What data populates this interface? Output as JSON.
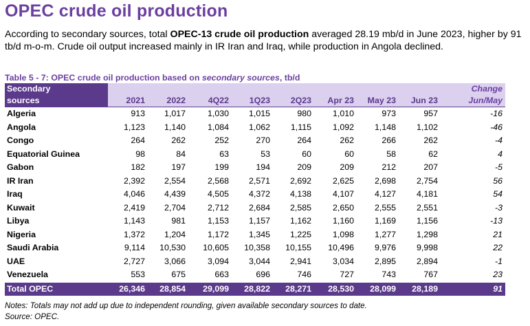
{
  "title": "OPEC crude oil production",
  "intro": {
    "part1": "According to secondary sources, total ",
    "bold": "OPEC-13 crude oil production",
    "part2": " averaged 28.19 mb/d in June 2023, higher by 91 tb/d m-o-m. Crude oil output increased mainly in IR Iran and Iraq, while production in Angola declined."
  },
  "caption": {
    "prefix": "Table 5 - 7: OPEC crude oil production based on ",
    "italic": "secondary sources",
    "suffix": ", tb/d"
  },
  "table": {
    "header": {
      "source_line1": "Secondary",
      "source_line2": "sources",
      "columns": [
        "2021",
        "2022",
        "4Q22",
        "1Q23",
        "2Q23",
        "Apr 23",
        "May 23",
        "Jun 23"
      ],
      "change_line1": "Change",
      "change_line2": "Jun/May"
    },
    "rows": [
      {
        "country": "Algeria",
        "values": [
          "913",
          "1,017",
          "1,030",
          "1,015",
          "980",
          "1,010",
          "973",
          "957"
        ],
        "change": "-16"
      },
      {
        "country": "Angola",
        "values": [
          "1,123",
          "1,140",
          "1,084",
          "1,062",
          "1,115",
          "1,092",
          "1,148",
          "1,102"
        ],
        "change": "-46"
      },
      {
        "country": "Congo",
        "values": [
          "264",
          "262",
          "252",
          "270",
          "264",
          "262",
          "266",
          "262"
        ],
        "change": "-4"
      },
      {
        "country": "Equatorial Guinea",
        "values": [
          "98",
          "84",
          "63",
          "53",
          "60",
          "60",
          "58",
          "62"
        ],
        "change": "4"
      },
      {
        "country": "Gabon",
        "values": [
          "182",
          "197",
          "199",
          "194",
          "209",
          "209",
          "212",
          "207"
        ],
        "change": "-5"
      },
      {
        "country": "IR Iran",
        "values": [
          "2,392",
          "2,554",
          "2,568",
          "2,571",
          "2,692",
          "2,625",
          "2,698",
          "2,754"
        ],
        "change": "56"
      },
      {
        "country": "Iraq",
        "values": [
          "4,046",
          "4,439",
          "4,505",
          "4,372",
          "4,138",
          "4,107",
          "4,127",
          "4,181"
        ],
        "change": "54"
      },
      {
        "country": "Kuwait",
        "values": [
          "2,419",
          "2,704",
          "2,712",
          "2,684",
          "2,585",
          "2,650",
          "2,555",
          "2,551"
        ],
        "change": "-3"
      },
      {
        "country": "Libya",
        "values": [
          "1,143",
          "981",
          "1,153",
          "1,157",
          "1,162",
          "1,160",
          "1,169",
          "1,156"
        ],
        "change": "-13"
      },
      {
        "country": "Nigeria",
        "values": [
          "1,372",
          "1,204",
          "1,172",
          "1,345",
          "1,225",
          "1,098",
          "1,277",
          "1,298"
        ],
        "change": "21"
      },
      {
        "country": "Saudi Arabia",
        "values": [
          "9,114",
          "10,530",
          "10,605",
          "10,358",
          "10,155",
          "10,496",
          "9,976",
          "9,998"
        ],
        "change": "22"
      },
      {
        "country": "UAE",
        "values": [
          "2,727",
          "3,066",
          "3,094",
          "3,044",
          "2,941",
          "3,034",
          "2,895",
          "2,894"
        ],
        "change": "-1"
      },
      {
        "country": "Venezuela",
        "values": [
          "553",
          "675",
          "663",
          "696",
          "746",
          "727",
          "743",
          "767"
        ],
        "change": "23"
      }
    ],
    "total": {
      "country": "Total  OPEC",
      "values": [
        "26,346",
        "28,854",
        "29,099",
        "28,822",
        "28,271",
        "28,530",
        "28,099",
        "28,189"
      ],
      "change": "91"
    }
  },
  "notes": {
    "line1": "Notes: Totals may not add up due to independent rounding, given available secondary sources to date.",
    "line2": "Source: OPEC."
  },
  "colors": {
    "title": "#6b3fa0",
    "header_dark": "#5b3a8c",
    "header_light": "#dcd0ef"
  }
}
